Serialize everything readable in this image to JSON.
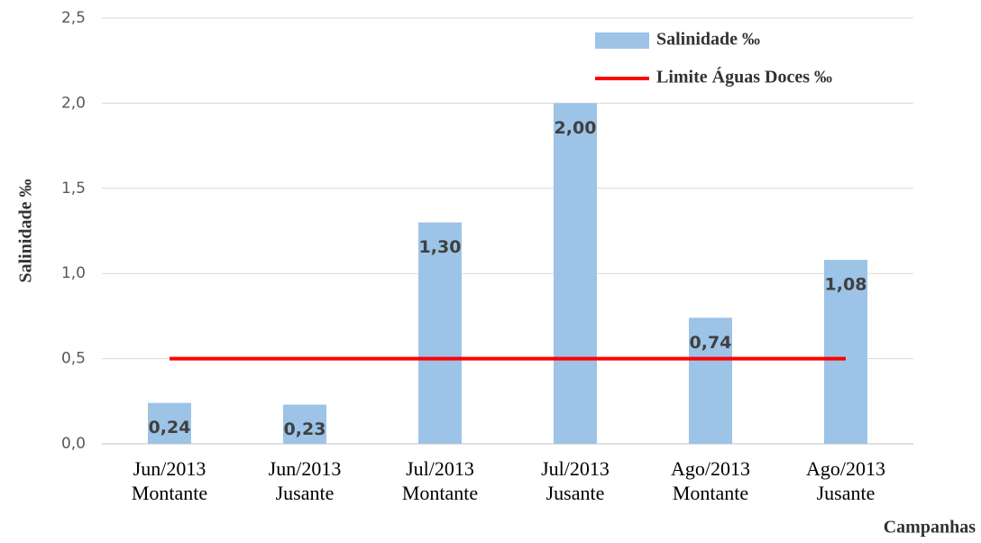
{
  "chart_data": {
    "type": "bar",
    "y_label": "Salinidade ‰",
    "x_label": "Campanhas",
    "categories": [
      [
        "Jun/2013",
        "Montante"
      ],
      [
        "Jun/2013",
        "Jusante"
      ],
      [
        "Jul/2013",
        "Montante"
      ],
      [
        "Jul/2013",
        "Jusante"
      ],
      [
        "Ago/2013",
        "Montante"
      ],
      [
        "Ago/2013",
        "Jusante"
      ]
    ],
    "series": [
      {
        "name": "Salinidade ‰",
        "color": "#9dc3e6",
        "type": "bar",
        "values": [
          0.24,
          0.23,
          1.3,
          2.0,
          0.74,
          1.08
        ],
        "value_labels": [
          "0,24",
          "0,23",
          "1,30",
          "2,00",
          "0,74",
          "1,08"
        ]
      },
      {
        "name": "Limite Águas Doces ‰",
        "color": "#ff0000",
        "type": "line",
        "values": [
          0.5,
          0.5,
          0.5,
          0.5,
          0.5,
          0.5
        ]
      }
    ],
    "ylim": [
      0,
      2.5
    ],
    "yticks": [
      {
        "value": 0,
        "label": "0,0"
      },
      {
        "value": 0.5,
        "label": "0,5"
      },
      {
        "value": 1,
        "label": "1,0"
      },
      {
        "value": 1.5,
        "label": "1,5"
      },
      {
        "value": 2,
        "label": "2,0"
      },
      {
        "value": 2.5,
        "label": "2,5"
      }
    ],
    "grid": true,
    "legend": "top-right"
  }
}
